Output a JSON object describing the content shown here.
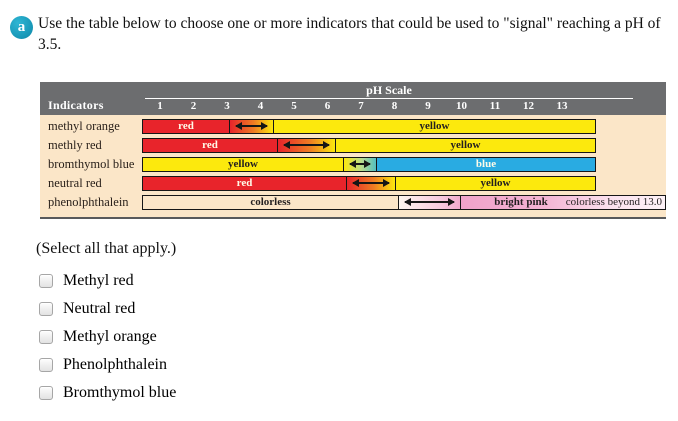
{
  "question": {
    "badge_label": "a",
    "text": "Use the table below to choose one or more indicators that could be used to \"signal\" reaching a pH of 3.5."
  },
  "table": {
    "corner_label": "Indicators",
    "scale_title": "pH Scale",
    "scale_ticks": [
      "1",
      "2",
      "3",
      "4",
      "5",
      "6",
      "7",
      "8",
      "9",
      "10",
      "11",
      "12",
      "13"
    ],
    "rows": [
      {
        "name": "methyl orange",
        "low_label": "red",
        "high_label": "yellow",
        "transition_ph": [
          3.0,
          4.4
        ]
      },
      {
        "name": "methly red",
        "low_label": "red",
        "high_label": "yellow",
        "transition_ph": [
          4.5,
          6.2
        ]
      },
      {
        "name": "bromthymol blue",
        "low_label": "yellow",
        "high_label": "blue",
        "transition_ph": [
          6.4,
          7.4
        ]
      },
      {
        "name": "neutral red",
        "low_label": "red",
        "high_label": "yellow",
        "transition_ph": [
          6.5,
          8.0
        ]
      },
      {
        "name": "phenolphthalein",
        "low_label": "colorless",
        "high_label": "bright pink",
        "beyond_label": "colorless beyond 13.0",
        "transition_ph": [
          8.1,
          10.0
        ]
      }
    ]
  },
  "select_note": "(Select all that apply.)",
  "options": [
    {
      "label": "Methyl red",
      "checked": false
    },
    {
      "label": "Neutral red",
      "checked": false
    },
    {
      "label": "Methyl orange",
      "checked": false
    },
    {
      "label": "Phenolphthalein",
      "checked": false
    },
    {
      "label": "Bromthymol blue",
      "checked": false
    }
  ],
  "colors": {
    "badge_teal": "#1796b6",
    "header_gray": "#6c6d6f",
    "table_background_peach": "#fbe6c8",
    "indicator_red": "#e8242b",
    "indicator_yellow": "#fce90d",
    "indicator_blue": "#29abe2",
    "indicator_bright_pink": "#f0a2ca"
  }
}
